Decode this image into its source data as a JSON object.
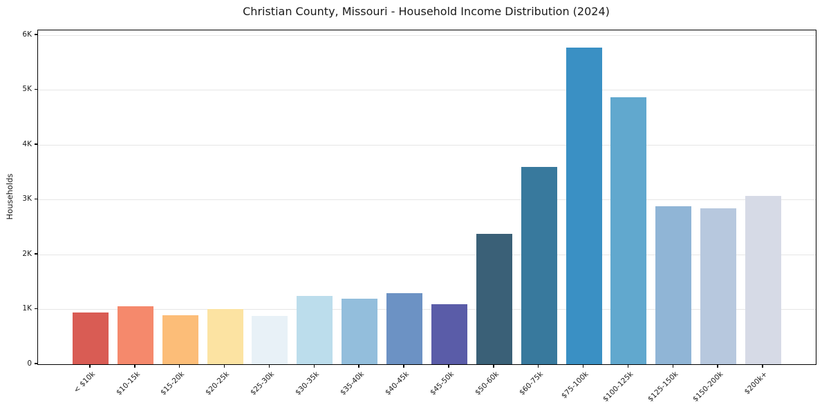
{
  "window": {
    "background": "#ffffff"
  },
  "chart_data": {
    "type": "bar",
    "title": "Christian County, Missouri - Household Income Distribution (2024)",
    "xlabel": "",
    "ylabel": "Households",
    "categories": [
      "< $10k",
      "$10-15k",
      "$15-20k",
      "$20-25k",
      "$25-30k",
      "$30-35k",
      "$35-40k",
      "$40-45k",
      "$45-50k",
      "$50-60k",
      "$60-75k",
      "$75-100k",
      "$100-125k",
      "$125-150k",
      "$150-200k",
      "$200k+"
    ],
    "values": [
      940,
      1060,
      890,
      1005,
      880,
      1240,
      1190,
      1300,
      1090,
      2375,
      3600,
      5770,
      4865,
      2885,
      2845,
      3065
    ],
    "bar_colors": [
      "#d95c54",
      "#f5896c",
      "#fcbd78",
      "#fce3a2",
      "#e8f1f7",
      "#bcddec",
      "#93bedc",
      "#6c92c4",
      "#5a5ca8",
      "#3a6077",
      "#38799d",
      "#3a90c4",
      "#61a8ce",
      "#90b5d6",
      "#b7c8de",
      "#d6dae6"
    ],
    "yticks": [
      {
        "label": "0",
        "value": 0
      },
      {
        "label": "1K",
        "value": 1000
      },
      {
        "label": "2K",
        "value": 2000
      },
      {
        "label": "3K",
        "value": 3000
      },
      {
        "label": "4K",
        "value": 4000
      },
      {
        "label": "5K",
        "value": 5000
      },
      {
        "label": "6K",
        "value": 6000
      }
    ],
    "ylim": [
      0,
      6090
    ],
    "grid": "horizontal",
    "legend": "none",
    "x_tick_rotation_deg": 45,
    "axis_color": "#000000",
    "gridline_color": "#e6e6e6"
  }
}
